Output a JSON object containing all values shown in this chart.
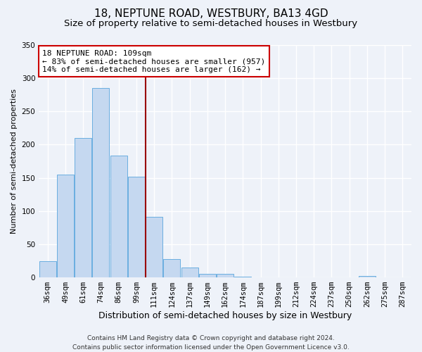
{
  "title": "18, NEPTUNE ROAD, WESTBURY, BA13 4GD",
  "subtitle": "Size of property relative to semi-detached houses in Westbury",
  "xlabel": "Distribution of semi-detached houses by size in Westbury",
  "ylabel": "Number of semi-detached properties",
  "bin_labels": [
    "36sqm",
    "49sqm",
    "61sqm",
    "74sqm",
    "86sqm",
    "99sqm",
    "111sqm",
    "124sqm",
    "137sqm",
    "149sqm",
    "162sqm",
    "174sqm",
    "187sqm",
    "199sqm",
    "212sqm",
    "224sqm",
    "237sqm",
    "250sqm",
    "262sqm",
    "275sqm",
    "287sqm"
  ],
  "bar_heights": [
    25,
    155,
    210,
    285,
    183,
    152,
    91,
    28,
    15,
    5,
    5,
    1,
    0,
    0,
    0,
    0,
    0,
    0,
    2,
    0,
    0
  ],
  "bar_color": "#c5d8f0",
  "bar_edge_color": "#6aaee0",
  "vline_index": 6,
  "vline_color": "#990000",
  "annotation_line1": "18 NEPTUNE ROAD: 109sqm",
  "annotation_line2": "← 83% of semi-detached houses are smaller (957)",
  "annotation_line3": "14% of semi-detached houses are larger (162) →",
  "annotation_box_facecolor": "#ffffff",
  "annotation_box_edgecolor": "#cc0000",
  "ylim": [
    0,
    350
  ],
  "yticks": [
    0,
    50,
    100,
    150,
    200,
    250,
    300,
    350
  ],
  "footer_line1": "Contains HM Land Registry data © Crown copyright and database right 2024.",
  "footer_line2": "Contains public sector information licensed under the Open Government Licence v3.0.",
  "bg_color": "#eef2f9",
  "grid_color": "#ffffff",
  "title_fontsize": 11,
  "subtitle_fontsize": 9.5,
  "xlabel_fontsize": 9,
  "ylabel_fontsize": 8,
  "tick_fontsize": 7.5,
  "annotation_fontsize": 8,
  "footer_fontsize": 6.5
}
